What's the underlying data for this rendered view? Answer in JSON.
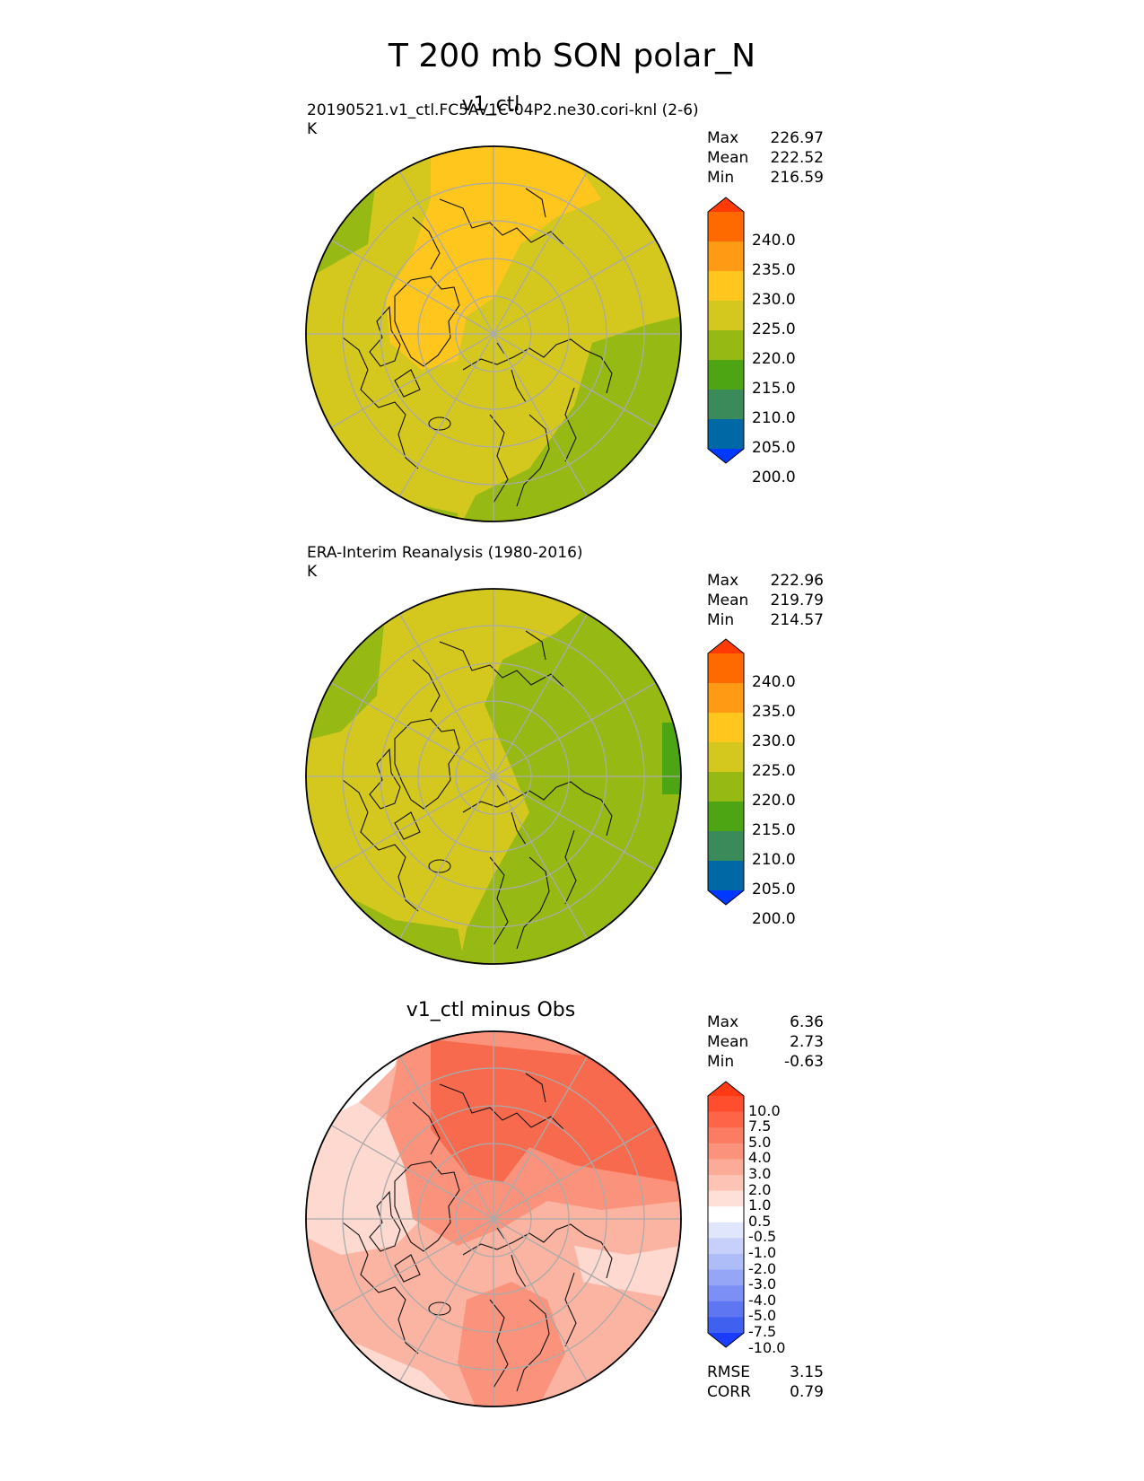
{
  "page": {
    "title": "T 200 mb SON polar_N"
  },
  "chart_data": [
    {
      "type": "heatmap",
      "panel_title": "v1_ctl",
      "info": [
        "20190521.v1_ctl.FC5AV1C-04P2.ne30.cori-knl (2-6)",
        "K"
      ],
      "stats": [
        {
          "label": "Max",
          "value": "226.97"
        },
        {
          "label": "Mean",
          "value": "222.52"
        },
        {
          "label": "Min",
          "value": "216.59"
        }
      ],
      "colorbar": {
        "tick_labels": [
          "240.0",
          "235.0",
          "230.0",
          "225.0",
          "220.0",
          "215.0",
          "210.0",
          "205.0",
          "200.0"
        ],
        "colors": [
          "#ff3a05",
          "#ff6a00",
          "#ff9a14",
          "#ffc61e",
          "#d4c81e",
          "#96b914",
          "#4ea514",
          "#3a8a5a",
          "#0069a5",
          "#0038ff"
        ]
      },
      "projection": "north polar stereographic",
      "field_colors": {
        "warm": "#ffc61e",
        "mid": "#d4c81e",
        "cool": "#96b914"
      }
    },
    {
      "type": "heatmap",
      "panel_title": "",
      "info": [
        "ERA-Interim Reanalysis (1980-2016)",
        "K"
      ],
      "stats": [
        {
          "label": "Max",
          "value": "222.96"
        },
        {
          "label": "Mean",
          "value": "219.79"
        },
        {
          "label": "Min",
          "value": "214.57"
        }
      ],
      "colorbar": {
        "tick_labels": [
          "240.0",
          "235.0",
          "230.0",
          "225.0",
          "220.0",
          "215.0",
          "210.0",
          "205.0",
          "200.0"
        ],
        "colors": [
          "#ff3a05",
          "#ff6a00",
          "#ff9a14",
          "#ffc61e",
          "#d4c81e",
          "#96b914",
          "#4ea514",
          "#3a8a5a",
          "#0069a5",
          "#0038ff"
        ]
      },
      "projection": "north polar stereographic",
      "field_colors": {
        "mid": "#d4c81e",
        "cool": "#96b914",
        "cold": "#4ea514"
      }
    },
    {
      "type": "heatmap",
      "panel_title": "v1_ctl minus Obs",
      "info": [],
      "stats": [
        {
          "label": "Max",
          "value": "6.36"
        },
        {
          "label": "Mean",
          "value": "2.73"
        },
        {
          "label": "Min",
          "value": "-0.63"
        }
      ],
      "colorbar": {
        "tick_labels": [
          "10.0",
          "7.5",
          "5.0",
          "4.0",
          "3.0",
          "2.0",
          "1.0",
          "0.5",
          "-0.5",
          "-1.0",
          "-2.0",
          "-3.0",
          "-4.0",
          "-5.0",
          "-7.5",
          "-10.0"
        ],
        "colors": [
          "#ff3a14",
          "#ff4e2e",
          "#fd6448",
          "#fb7c62",
          "#fb937c",
          "#fcab98",
          "#fdc4b6",
          "#fee0d8",
          "#ffffff",
          "#e0e6fb",
          "#c6d0fa",
          "#aebcf8",
          "#95a6f6",
          "#7b8ff4",
          "#5f76f2",
          "#4060f0",
          "#1a3cff"
        ]
      },
      "projection": "north polar stereographic",
      "field_colors": {
        "strong": "#f86a4d",
        "medium": "#fb937c",
        "light": "#fcb4a2",
        "faint": "#fdd9cf",
        "zero": "#ffffff"
      },
      "metrics": [
        {
          "label": "RMSE",
          "value": "3.15"
        },
        {
          "label": "CORR",
          "value": "0.79"
        }
      ]
    }
  ]
}
